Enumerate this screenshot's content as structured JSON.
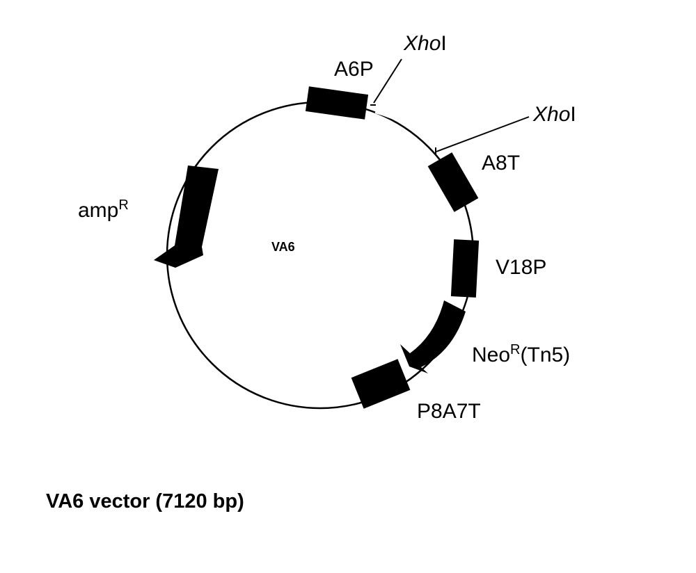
{
  "plasmid": {
    "name": "VA6",
    "caption": "VA6 vector (7120 bp)",
    "features": {
      "a6p": {
        "label": "A6P"
      },
      "a8t": {
        "label": "A8T"
      },
      "v18p": {
        "label": "V18P"
      },
      "p8a7t": {
        "label": "P8A7T"
      },
      "ampr": {
        "label_main": "amp",
        "label_sup": "R"
      },
      "neor": {
        "label_main": "Neo",
        "label_sup": "R",
        "label_suffix": "(Tn5)"
      }
    },
    "sites": [
      {
        "italic": "Xho",
        "roman": "I"
      },
      {
        "italic": "Xho",
        "roman": "I"
      }
    ]
  }
}
